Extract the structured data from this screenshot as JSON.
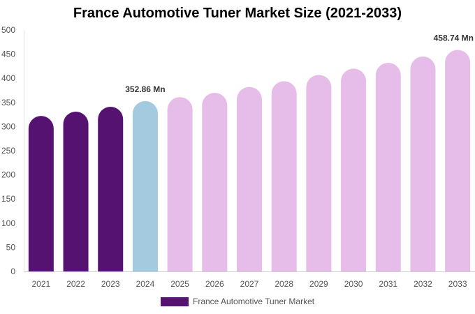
{
  "chart_data": {
    "type": "bar",
    "title": "France Automotive Tuner Market Size (2021-2033)",
    "categories": [
      "2021",
      "2022",
      "2023",
      "2024",
      "2025",
      "2026",
      "2027",
      "2028",
      "2029",
      "2030",
      "2031",
      "2032",
      "2033"
    ],
    "series": [
      {
        "name": "France Automotive Tuner Market",
        "values": [
          322,
          331,
          341,
          352.86,
          361,
          370,
          382,
          394,
          407,
          420,
          432,
          445,
          458.74
        ]
      }
    ],
    "bar_colors": [
      "#561271",
      "#561271",
      "#561271",
      "#a4cadf",
      "#e6bce8",
      "#e6bce8",
      "#e6bce8",
      "#e6bce8",
      "#e6bce8",
      "#e6bce8",
      "#e6bce8",
      "#e6bce8",
      "#e6bce8"
    ],
    "yticks": [
      0,
      50,
      100,
      150,
      200,
      250,
      300,
      350,
      400,
      450,
      500
    ],
    "ylim": [
      0,
      500
    ],
    "data_labels": [
      {
        "index": 3,
        "text": "352.86 Mn"
      },
      {
        "index": 12,
        "text": "458.74 Mn"
      }
    ],
    "legend": {
      "label": "France Automotive Tuner Market",
      "color": "#561271",
      "placement": "bottom-center"
    },
    "grid": false
  }
}
